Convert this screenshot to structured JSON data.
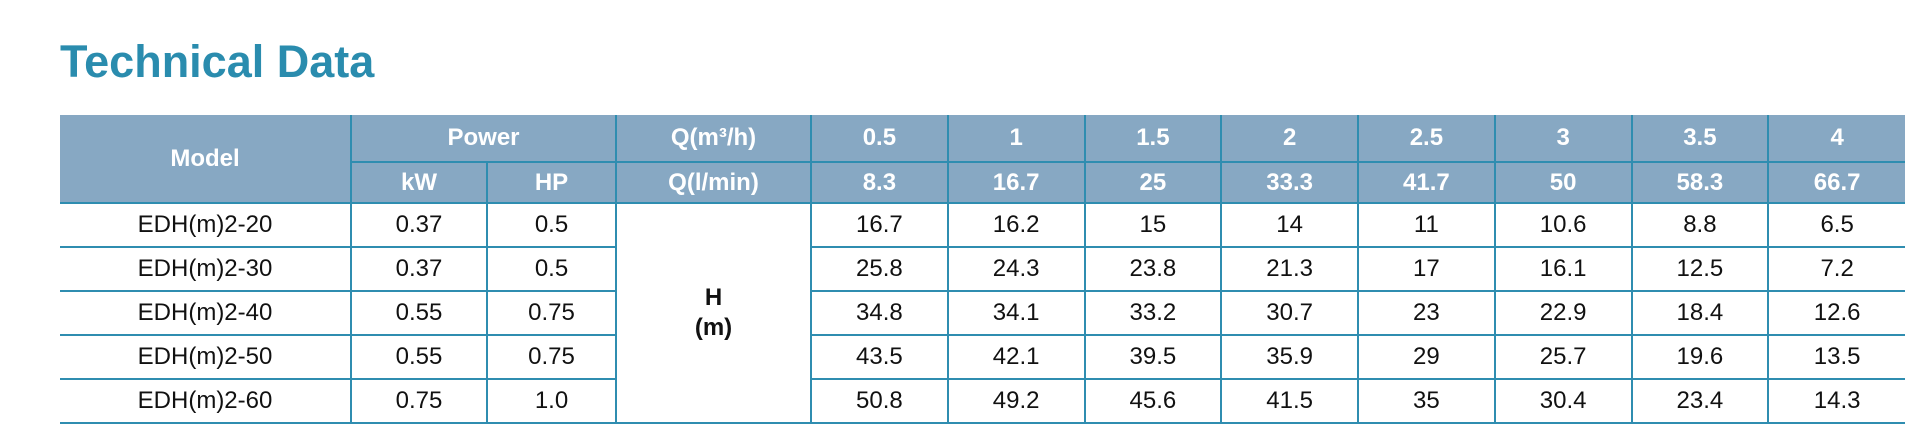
{
  "title": "Technical Data",
  "table": {
    "header": {
      "model": "Model",
      "power": "Power",
      "kw": "kW",
      "hp": "HP",
      "q_m3h": "Q(m³/h)",
      "q_lmin": "Q(l/min)",
      "h": "H",
      "h_unit": "(m)"
    },
    "flow_m3h": [
      "0.5",
      "1",
      "1.5",
      "2",
      "2.5",
      "3",
      "3.5",
      "4"
    ],
    "flow_lmin": [
      "8.3",
      "16.7",
      "25",
      "33.3",
      "41.7",
      "50",
      "58.3",
      "66.7"
    ],
    "rows": [
      {
        "model": "EDH(m)2-20",
        "kw": "0.37",
        "hp": "0.5",
        "heads": [
          "16.7",
          "16.2",
          "15",
          "14",
          "11",
          "10.6",
          "8.8",
          "6.5"
        ]
      },
      {
        "model": "EDH(m)2-30",
        "kw": "0.37",
        "hp": "0.5",
        "heads": [
          "25.8",
          "24.3",
          "23.8",
          "21.3",
          "17",
          "16.1",
          "12.5",
          "7.2"
        ]
      },
      {
        "model": "EDH(m)2-40",
        "kw": "0.55",
        "hp": "0.75",
        "heads": [
          "34.8",
          "34.1",
          "33.2",
          "30.7",
          "23",
          "22.9",
          "18.4",
          "12.6"
        ]
      },
      {
        "model": "EDH(m)2-50",
        "kw": "0.55",
        "hp": "0.75",
        "heads": [
          "43.5",
          "42.1",
          "39.5",
          "35.9",
          "29",
          "25.7",
          "19.6",
          "13.5"
        ]
      },
      {
        "model": "EDH(m)2-60",
        "kw": "0.75",
        "hp": "1.0",
        "heads": [
          "50.8",
          "49.2",
          "45.6",
          "41.5",
          "35",
          "30.4",
          "23.4",
          "14.3"
        ]
      }
    ]
  }
}
